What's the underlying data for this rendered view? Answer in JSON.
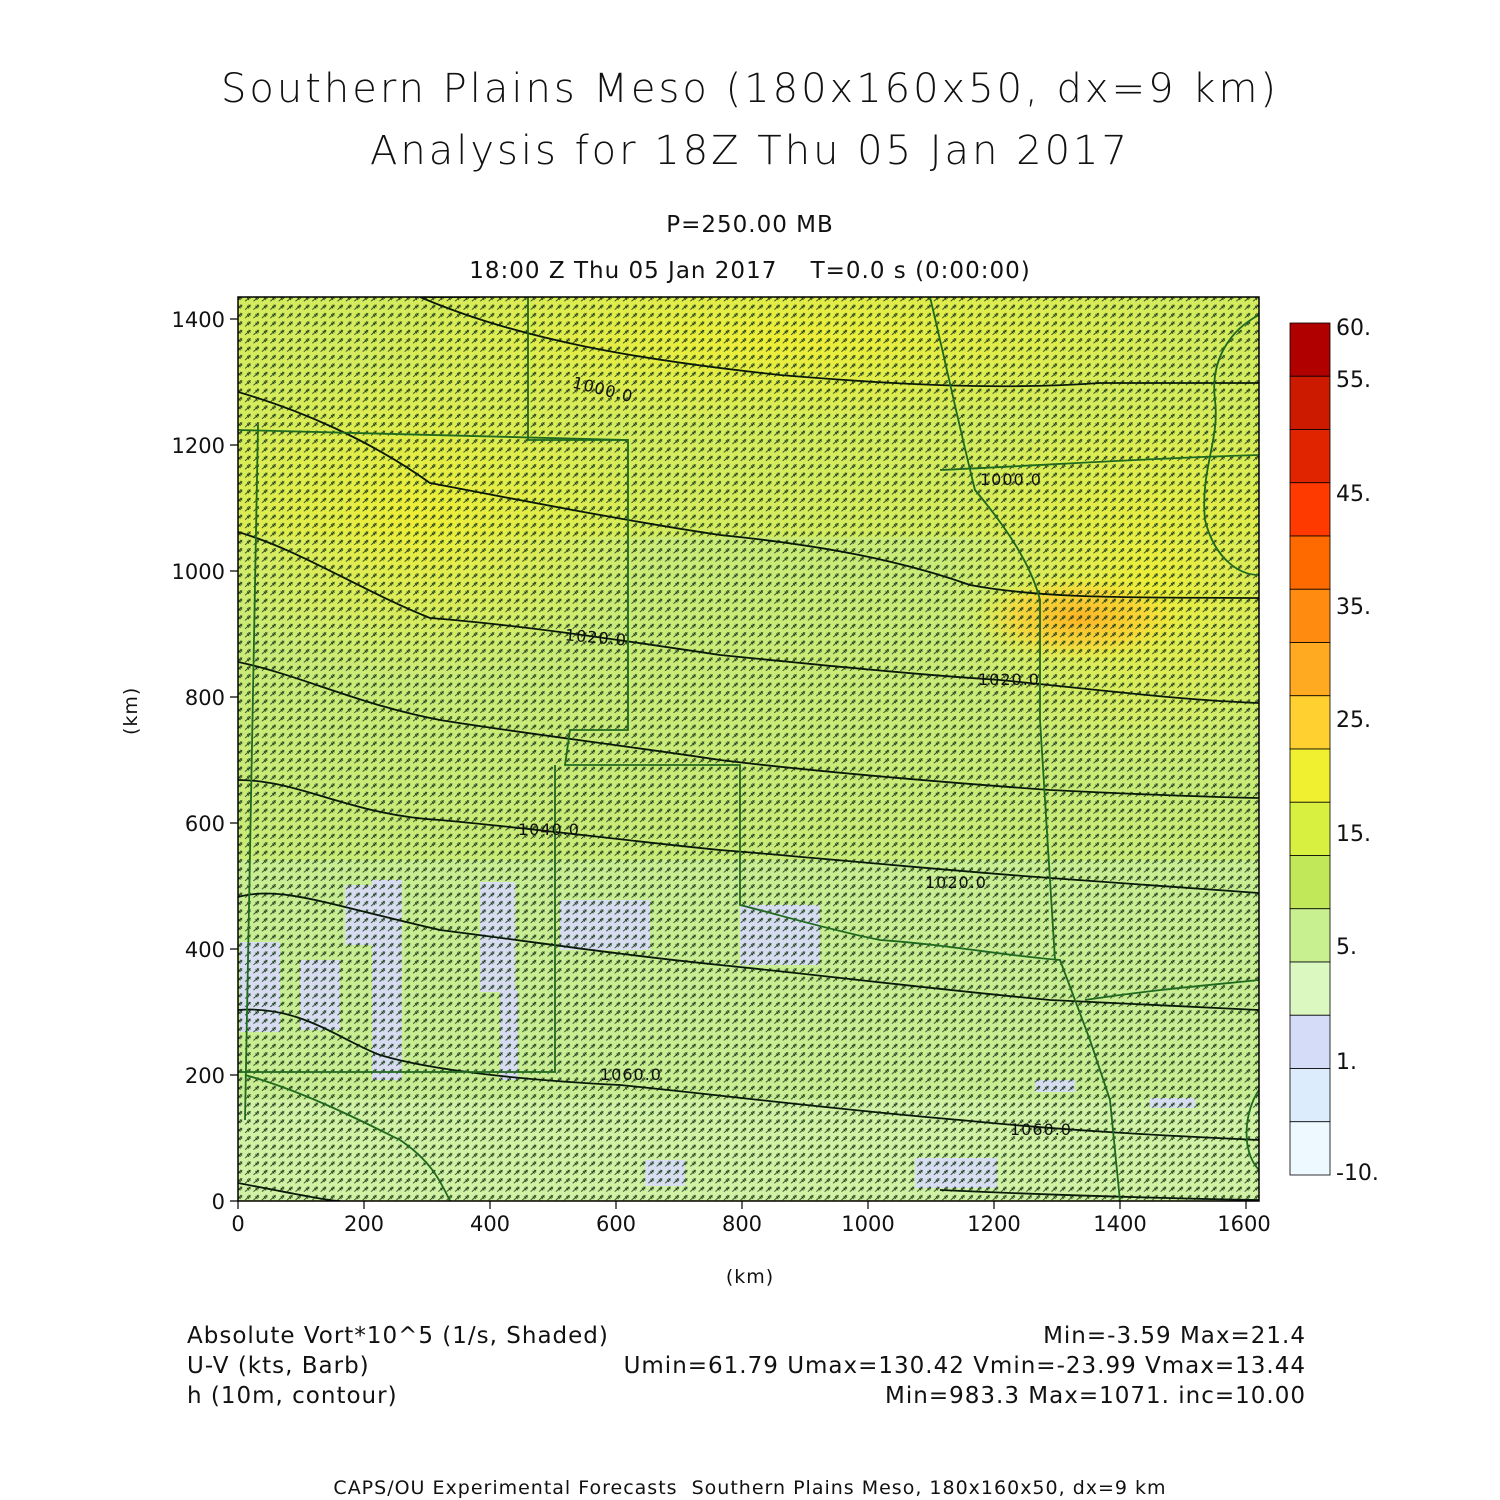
{
  "header": {
    "title_line1": "Southern Plains Meso (180x160x50, dx=9 km)",
    "title_line2": "Analysis for 18Z Thu 05 Jan 2017",
    "level": "P=250.00 MB",
    "time": "18:00 Z Thu 05 Jan 2017    T=0.0 s (0:00:00)"
  },
  "axes": {
    "x_label": "(km)",
    "y_label": "(km)",
    "x_ticks": [
      "0",
      "200",
      "400",
      "600",
      "800",
      "1000",
      "1200",
      "1400",
      "1600"
    ],
    "y_ticks": [
      "0",
      "200",
      "400",
      "600",
      "800",
      "1000",
      "1200",
      "1400"
    ],
    "x_range": [
      0,
      1620
    ],
    "y_range": [
      0,
      1440
    ]
  },
  "colorbar": {
    "labels": [
      "60.",
      "55.",
      "45.",
      "35.",
      "25.",
      "15.",
      "5.",
      "1.",
      "-10."
    ],
    "colors_top_to_bottom": [
      "#b00000",
      "#cc1a00",
      "#e02400",
      "#ff3a00",
      "#ff6a00",
      "#ff8c10",
      "#ffaa20",
      "#ffd030",
      "#f0f030",
      "#d8f040",
      "#c0e858",
      "#c8f090",
      "#daf8c0",
      "#d4dcf8",
      "#dcecfc",
      "#eef8ff"
    ]
  },
  "contours": {
    "labels": [
      "1000.0",
      "1000.0",
      "1020.0",
      "1020.0",
      "1040.0",
      "1020.0",
      "1060.0",
      "1060.0"
    ]
  },
  "footer_left": {
    "line1": "Absolute Vort*10^5 (1/s, Shaded)",
    "line2": "U-V (kts, Barb)",
    "line3": "h (10m, contour)"
  },
  "footer_right": {
    "line1": "Min=-3.59 Max=21.4",
    "line2": "Umin=61.79 Umax=130.42 Vmin=-23.99 Vmax=13.44",
    "line3": "Min=983.3 Max=1071. inc=10.00"
  },
  "credits": "CAPS/OU Experimental Forecasts  Southern Plains Meso, 180x160x50, dx=9 km"
}
